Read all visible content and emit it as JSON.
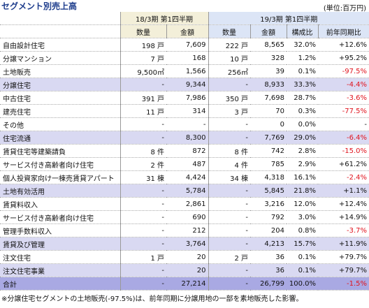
{
  "header": {
    "title": "セグメント別売上高",
    "unit": "(単位:百万円)"
  },
  "table": {
    "groups": [
      "18/3期 第1四半期",
      "19/3期 第1四半期"
    ],
    "columns": [
      "数量",
      "金額",
      "数量",
      "金額",
      "構成比",
      "前年同期比"
    ],
    "rows": [
      [
        "自由設計住宅",
        "198 戸",
        "7,609",
        "222 戸",
        "8,565",
        "32.0%",
        "+12.6%"
      ],
      [
        "分譲マンション",
        "7 戸",
        "168",
        "10 戸",
        "328",
        "1.2%",
        "+95.2%"
      ],
      [
        "土地販売",
        "9,500㎡",
        "1,566",
        "256㎡",
        "39",
        "0.1%",
        "-97.5%"
      ],
      [
        "分譲住宅",
        "-",
        "9,344",
        "-",
        "8,933",
        "33.3%",
        "-4.4%"
      ],
      [
        "中古住宅",
        "391 戸",
        "7,986",
        "350 戸",
        "7,698",
        "28.7%",
        "-3.6%"
      ],
      [
        "建売住宅",
        "11 戸",
        "314",
        "3 戸",
        "70",
        "0.3%",
        "-77.5%"
      ],
      [
        "その他",
        "-",
        "-",
        "-",
        "0",
        "0.0%",
        "-"
      ],
      [
        "住宅流通",
        "-",
        "8,300",
        "-",
        "7,769",
        "29.0%",
        "-6.4%"
      ],
      [
        "賃貸住宅等建築請負",
        "8 件",
        "872",
        "8 件",
        "742",
        "2.8%",
        "-15.0%"
      ],
      [
        "サービス付き高齢者向け住宅",
        "2 件",
        "487",
        "4 件",
        "785",
        "2.9%",
        "+61.2%"
      ],
      [
        "個人投資家向け一棟売賃貸アパート",
        "31 棟",
        "4,424",
        "34 棟",
        "4,318",
        "16.1%",
        "-2.4%"
      ],
      [
        "土地有効活用",
        "-",
        "5,784",
        "-",
        "5,845",
        "21.8%",
        "+1.1%"
      ],
      [
        "賃貸料収入",
        "-",
        "2,861",
        "-",
        "3,216",
        "12.0%",
        "+12.4%"
      ],
      [
        "サービス付き高齢者向け住宅",
        "-",
        "690",
        "-",
        "792",
        "3.0%",
        "+14.9%"
      ],
      [
        "管理手数料収入",
        "-",
        "212",
        "-",
        "204",
        "0.8%",
        "-3.7%"
      ],
      [
        "賃貸及び管理",
        "-",
        "3,764",
        "-",
        "4,213",
        "15.7%",
        "+11.9%"
      ],
      [
        "注文住宅",
        "1 戸",
        "20",
        "2 戸",
        "36",
        "0.1%",
        "+79.7%"
      ],
      [
        "注文住宅事業",
        "-",
        "20",
        "-",
        "36",
        "0.1%",
        "+79.7%"
      ],
      [
        "合計",
        "-",
        "27,214",
        "-",
        "26,799",
        "100.0%",
        "-1.5%"
      ]
    ]
  },
  "footnote": "※分譲住宅セグメントの土地販売(-97.5%)は、前年同期に分譲用地の一部を素地販売した影響。"
}
